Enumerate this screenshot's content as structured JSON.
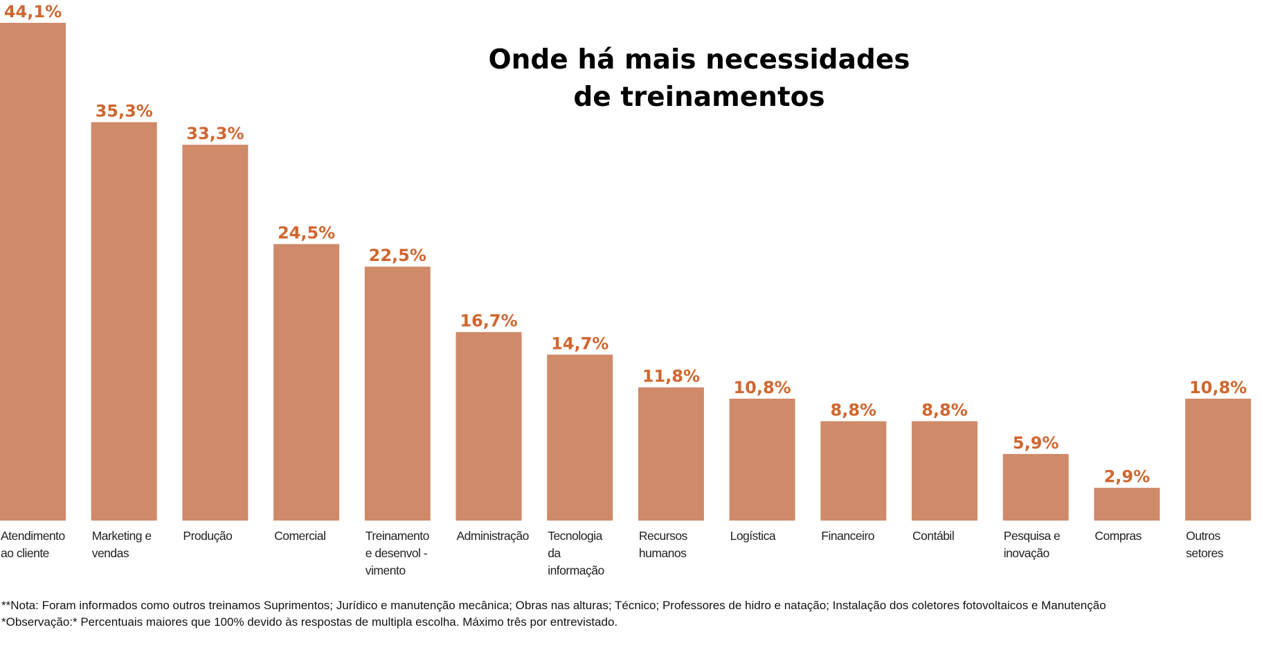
{
  "chart_data": {
    "type": "bar",
    "title": "Onde há mais necessidades de treinamentos",
    "title_lines": [
      "Onde há mais necessidades",
      "de treinamentos"
    ],
    "categories": [
      "Atendimento ao cliente",
      "Marketing e vendas",
      "Produção",
      "Comercial",
      "Treinamento e desenvol - vimento",
      "Administração",
      "Tecnologia da informação",
      "Recursos humanos",
      "Logística",
      "Financeiro",
      "Contábil",
      "Pesquisa e inovação",
      "Compras",
      "Outros setores"
    ],
    "category_lines": [
      [
        "Atendimento",
        "ao cliente"
      ],
      [
        "Marketing e",
        "vendas"
      ],
      [
        "Produção"
      ],
      [
        "Comercial"
      ],
      [
        "Treinamento",
        "e desenvol -",
        "vimento"
      ],
      [
        "Administração"
      ],
      [
        "Tecnologia",
        "da",
        "informação"
      ],
      [
        "Recursos",
        "humanos"
      ],
      [
        "Logística"
      ],
      [
        "Financeiro"
      ],
      [
        "Contábil"
      ],
      [
        "Pesquisa e",
        "inovação"
      ],
      [
        "Compras"
      ],
      [
        "Outros",
        "setores"
      ]
    ],
    "values": [
      44.1,
      35.3,
      33.3,
      24.5,
      22.5,
      16.7,
      14.7,
      11.8,
      10.8,
      8.8,
      8.8,
      5.9,
      2.9,
      10.8
    ],
    "value_labels": [
      "44,1%",
      "35,3%",
      "33,3%",
      "24,5%",
      "22,5%",
      "16,7%",
      "14,7%",
      "11,8%",
      "10,8%",
      "8,8%",
      "8,8%",
      "5,9%",
      "2,9%",
      "10,8%"
    ],
    "unit": "%",
    "ylim": [
      0,
      44.1
    ],
    "xlabel": "",
    "ylabel": "",
    "grid": false,
    "legend": "none",
    "bar_color": "#cf8a6a",
    "label_color": "#d0662f"
  },
  "notes": [
    "**Nota: Foram informados como outros treinamos Suprimentos; Jurídico e manutenção mecânica; Obras nas alturas; Técnico; Professores de hidro e natação; Instalação dos coletores fotovoltaicos e Manutenção",
    "*Observação:* Percentuais maiores que 100% devido às respostas de multipla escolha. Máximo três por entrevistado."
  ]
}
